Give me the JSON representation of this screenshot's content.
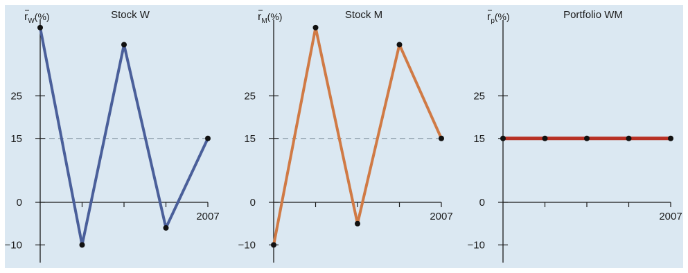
{
  "chart_data": [
    {
      "type": "line",
      "title": "Stock W",
      "ylabel_main": "r",
      "ylabel_sub": "W",
      "ylabel_unit": "(%)",
      "x_end_label": "2007",
      "yticks": [
        -10,
        0,
        15,
        25
      ],
      "ylim": [
        -15,
        41
      ],
      "x": [
        0,
        1,
        2,
        3,
        4
      ],
      "values": [
        41,
        -10,
        37,
        -6,
        15
      ],
      "reference_line": 15,
      "color": "#4a5f9a"
    },
    {
      "type": "line",
      "title": "Stock M",
      "ylabel_main": "r",
      "ylabel_sub": "M",
      "ylabel_unit": "(%)",
      "x_end_label": "2007",
      "yticks": [
        -10,
        0,
        15,
        25
      ],
      "ylim": [
        -15,
        41
      ],
      "x": [
        0,
        1,
        2,
        3,
        4
      ],
      "values": [
        -10,
        41,
        -5,
        37,
        15
      ],
      "reference_line": 15,
      "color": "#d07a45"
    },
    {
      "type": "line",
      "title": "Portfolio WM",
      "ylabel_main": "r",
      "ylabel_sub": "p",
      "ylabel_unit": "(%)",
      "x_end_label": "2007",
      "yticks": [
        -10,
        0,
        15,
        25
      ],
      "ylim": [
        -15,
        41
      ],
      "x": [
        0,
        1,
        2,
        3,
        4
      ],
      "values": [
        15,
        15,
        15,
        15,
        15
      ],
      "reference_line": null,
      "color": "#b83024"
    }
  ]
}
